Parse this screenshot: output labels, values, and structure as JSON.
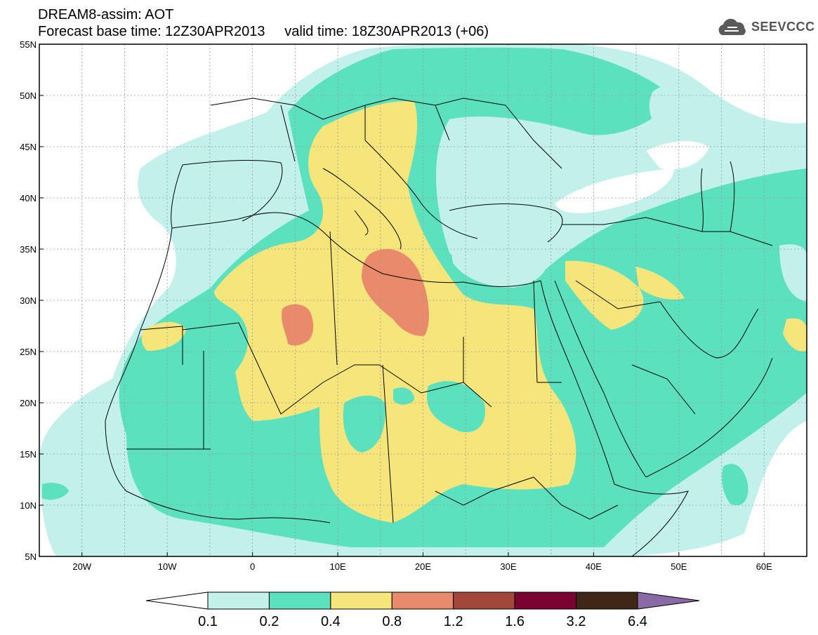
{
  "header": {
    "line1": "DREAM8-assim: AOT",
    "line2": "Forecast base time: 12Z30APR2013     valid time: 18Z30APR2013 (+06)"
  },
  "logo": {
    "text": "SEEVCCC",
    "icon": "cloud-icon"
  },
  "map": {
    "lon_range": [
      -25,
      65
    ],
    "lat_range": [
      5,
      55
    ],
    "grid": true,
    "lon_ticks": [
      {
        "value": -20,
        "label": "20W"
      },
      {
        "value": -10,
        "label": "10W"
      },
      {
        "value": 0,
        "label": "0"
      },
      {
        "value": 10,
        "label": "10E"
      },
      {
        "value": 20,
        "label": "20E"
      },
      {
        "value": 30,
        "label": "30E"
      },
      {
        "value": 40,
        "label": "40E"
      },
      {
        "value": 50,
        "label": "50E"
      },
      {
        "value": 60,
        "label": "60E"
      }
    ],
    "lat_ticks": [
      {
        "value": 55,
        "label": "55N"
      },
      {
        "value": 50,
        "label": "50N"
      },
      {
        "value": 45,
        "label": "45N"
      },
      {
        "value": 40,
        "label": "40N"
      },
      {
        "value": 35,
        "label": "35N"
      },
      {
        "value": 30,
        "label": "30N"
      },
      {
        "value": 25,
        "label": "25N"
      },
      {
        "value": 20,
        "label": "20N"
      },
      {
        "value": 15,
        "label": "15N"
      },
      {
        "value": 10,
        "label": "10N"
      },
      {
        "value": 5,
        "label": "5N"
      }
    ]
  },
  "colorbar": {
    "labels": [
      "0.1",
      "0.2",
      "0.4",
      "0.8",
      "1.2",
      "1.6",
      "3.2",
      "6.4"
    ],
    "colors": [
      "#ffffff",
      "#c2f0eb",
      "#5ce1bf",
      "#f6e57b",
      "#e98a6b",
      "#a4473b",
      "#7a0331",
      "#3e2717",
      "#8a6aa6"
    ]
  },
  "colors": {
    "c01": "#c2f0eb",
    "c02": "#5ce1bf",
    "c04": "#f6e57b",
    "c08": "#e98a6b",
    "grid": "#9a9a9a",
    "border": "#000000"
  }
}
